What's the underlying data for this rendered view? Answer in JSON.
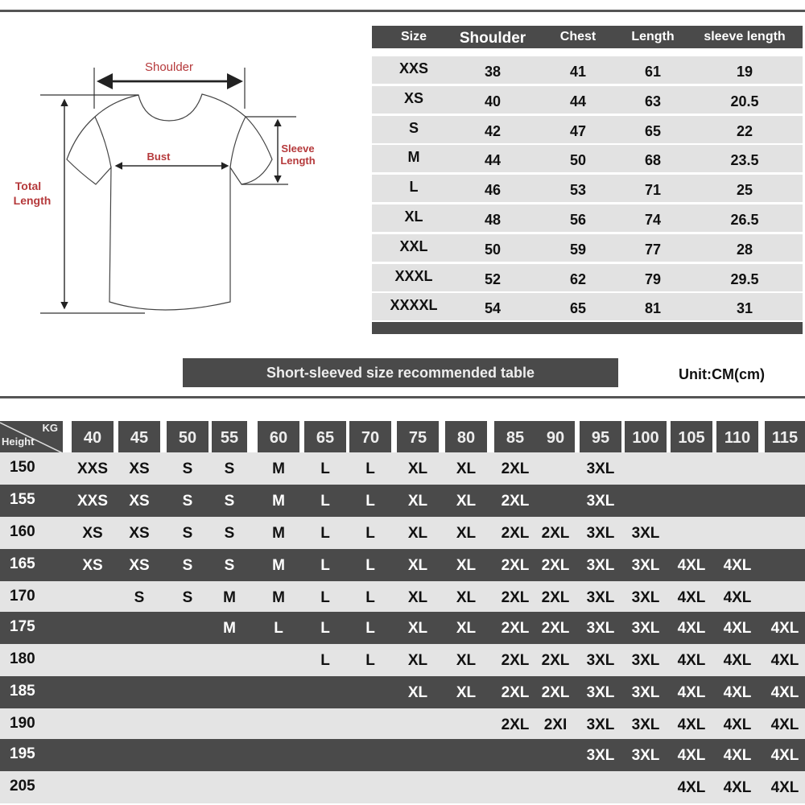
{
  "diagram": {
    "shoulder": "Shoulder",
    "bust": "Bust",
    "sleeve_length_1": "Sleeve",
    "sleeve_length_2": "Length",
    "total_length_1": "Total",
    "total_length_2": "Length"
  },
  "size_table": {
    "headers": [
      "Size",
      "Shoulder",
      "Chest",
      "Length",
      "sleeve length"
    ],
    "rows": [
      [
        "XXS",
        "38",
        "41",
        "61",
        "19"
      ],
      [
        "XS",
        "40",
        "44",
        "63",
        "20.5"
      ],
      [
        "S",
        "42",
        "47",
        "65",
        "22"
      ],
      [
        "M",
        "44",
        "50",
        "68",
        "23.5"
      ],
      [
        "L",
        "46",
        "53",
        "71",
        "25"
      ],
      [
        "XL",
        "48",
        "56",
        "74",
        "26.5"
      ],
      [
        "XXL",
        "50",
        "59",
        "77",
        "28"
      ],
      [
        "XXXL",
        "52",
        "62",
        "79",
        "29.5"
      ],
      [
        "XXXXL",
        "54",
        "65",
        "81",
        "31"
      ]
    ]
  },
  "banner": "Short-sleeved size recommended table",
  "unit": "Unit:CM(cm)",
  "rec_table": {
    "corner_kg": "KG",
    "corner_height": "Height",
    "weights": [
      "40",
      "45",
      "50",
      "55",
      "60",
      "65",
      "70",
      "75",
      "80",
      "85",
      "90",
      "95",
      "100",
      "105",
      "110",
      "115"
    ],
    "rows": [
      {
        "height": "150",
        "sizes": [
          "XXS",
          "XS",
          "S",
          "S",
          "M",
          "L",
          "L",
          "XL",
          "XL",
          "2XL",
          "",
          "3XL",
          "",
          "",
          "",
          ""
        ]
      },
      {
        "height": "155",
        "sizes": [
          "XXS",
          "XS",
          "S",
          "S",
          "M",
          "L",
          "L",
          "XL",
          "XL",
          "2XL",
          "",
          "3XL",
          "",
          "",
          "",
          ""
        ]
      },
      {
        "height": "160",
        "sizes": [
          "XS",
          "XS",
          "S",
          "S",
          "M",
          "L",
          "L",
          "XL",
          "XL",
          "2XL",
          "2XL",
          "3XL",
          "3XL",
          "",
          "",
          ""
        ]
      },
      {
        "height": "165",
        "sizes": [
          "XS",
          "XS",
          "S",
          "S",
          "M",
          "L",
          "L",
          "XL",
          "XL",
          "2XL",
          "2XL",
          "3XL",
          "3XL",
          "4XL",
          "4XL",
          ""
        ]
      },
      {
        "height": "170",
        "sizes": [
          "",
          "S",
          "S",
          "M",
          "M",
          "L",
          "L",
          "XL",
          "XL",
          "2XL",
          "2XL",
          "3XL",
          "3XL",
          "4XL",
          "4XL",
          ""
        ]
      },
      {
        "height": "175",
        "sizes": [
          "",
          "",
          "",
          "M",
          "L",
          "L",
          "L",
          "XL",
          "XL",
          "2XL",
          "2XL",
          "3XL",
          "3XL",
          "4XL",
          "4XL",
          "4XL"
        ]
      },
      {
        "height": "180",
        "sizes": [
          "",
          "",
          "",
          "",
          "",
          "L",
          "L",
          "XL",
          "XL",
          "2XL",
          "2XL",
          "3XL",
          "3XL",
          "4XL",
          "4XL",
          "4XL"
        ]
      },
      {
        "height": "185",
        "sizes": [
          "",
          "",
          "",
          "",
          "",
          "",
          "",
          "XL",
          "XL",
          "2XL",
          "2XL",
          "3XL",
          "3XL",
          "4XL",
          "4XL",
          "4XL"
        ]
      },
      {
        "height": "190",
        "sizes": [
          "",
          "",
          "",
          "",
          "",
          "",
          "",
          "",
          "",
          "2XL",
          "2XI",
          "3XL",
          "3XL",
          "4XL",
          "4XL",
          "4XL"
        ]
      },
      {
        "height": "195",
        "sizes": [
          "",
          "",
          "",
          "",
          "",
          "",
          "",
          "",
          "",
          "",
          "",
          "3XL",
          "3XL",
          "4XL",
          "4XL",
          "4XL"
        ]
      },
      {
        "height": "205",
        "sizes": [
          "",
          "",
          "",
          "",
          "",
          "",
          "",
          "",
          "",
          "",
          "",
          "",
          "",
          "4XL",
          "4XL",
          "4XL"
        ]
      }
    ]
  },
  "colors": {
    "dark": "#4a4a4a",
    "light": "#e4e4e4",
    "label_red": "#b5393b"
  }
}
